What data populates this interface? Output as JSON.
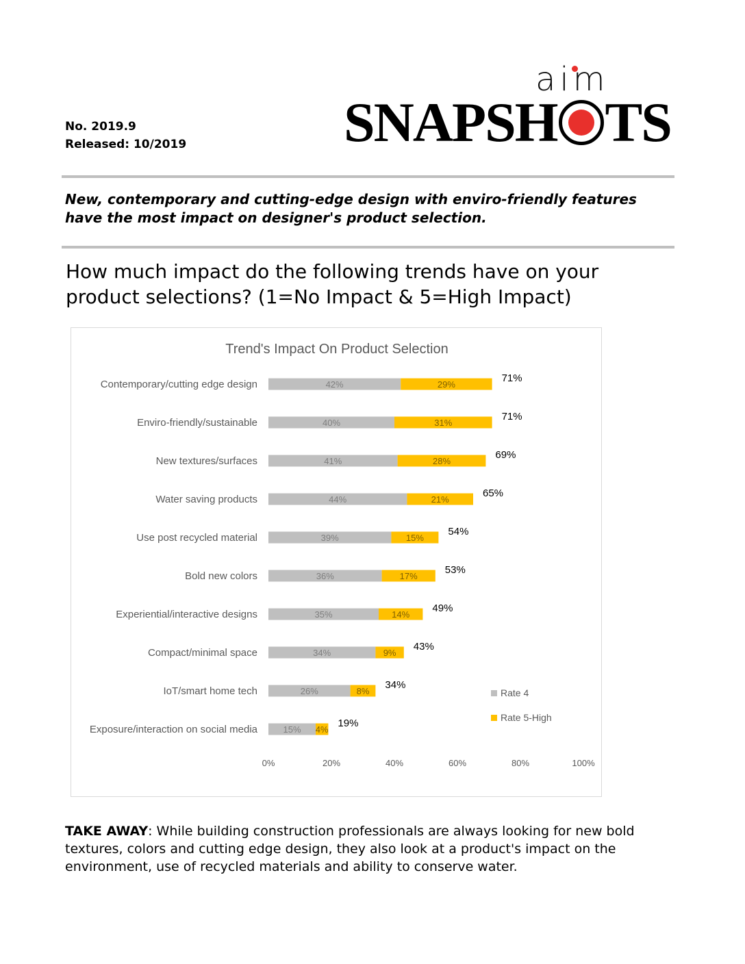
{
  "header": {
    "number": "No. 2019.9",
    "released": "Released: 10/2019",
    "logo_top": "aim",
    "logo_main_left": "SNAPSH",
    "logo_main_right": "TS"
  },
  "headline": "New, contemporary and cutting-edge design with enviro-friendly features have the most impact on designer's product selection.",
  "question": "How much impact do the following trends have on your product selections? (1=No Impact & 5=High Impact)",
  "chart_data": {
    "type": "bar",
    "orientation": "horizontal",
    "stacked": true,
    "title": "Trend's Impact On Product Selection",
    "categories": [
      "Contemporary/cutting edge design",
      "Enviro-friendly/sustainable",
      "New textures/surfaces",
      "Water saving products",
      "Use post recycled material",
      "Bold new colors",
      "Experiential/interactive designs",
      "Compact/minimal space",
      "IoT/smart home tech",
      "Exposure/interaction on social media"
    ],
    "series": [
      {
        "name": "Rate 4",
        "color": "#bfbfbf",
        "values": [
          42,
          40,
          41,
          44,
          39,
          36,
          35,
          34,
          26,
          15
        ]
      },
      {
        "name": "Rate 5-High",
        "color": "#ffc000",
        "values": [
          29,
          31,
          28,
          21,
          15,
          17,
          14,
          9,
          8,
          4
        ]
      }
    ],
    "totals": [
      71,
      71,
      69,
      65,
      54,
      53,
      49,
      43,
      34,
      19
    ],
    "value_suffix": "%",
    "x_ticks": [
      "0%",
      "20%",
      "40%",
      "60%",
      "80%",
      "100%"
    ],
    "xlim": [
      0,
      100
    ],
    "legend_position": "right",
    "grid": false
  },
  "takeaway": {
    "label": "TAKE AWAY",
    "text": ": While building construction professionals are always looking for new bold textures, colors and cutting edge design, they also look at a product's impact on the environment, use of recycled materials and ability to conserve water."
  }
}
